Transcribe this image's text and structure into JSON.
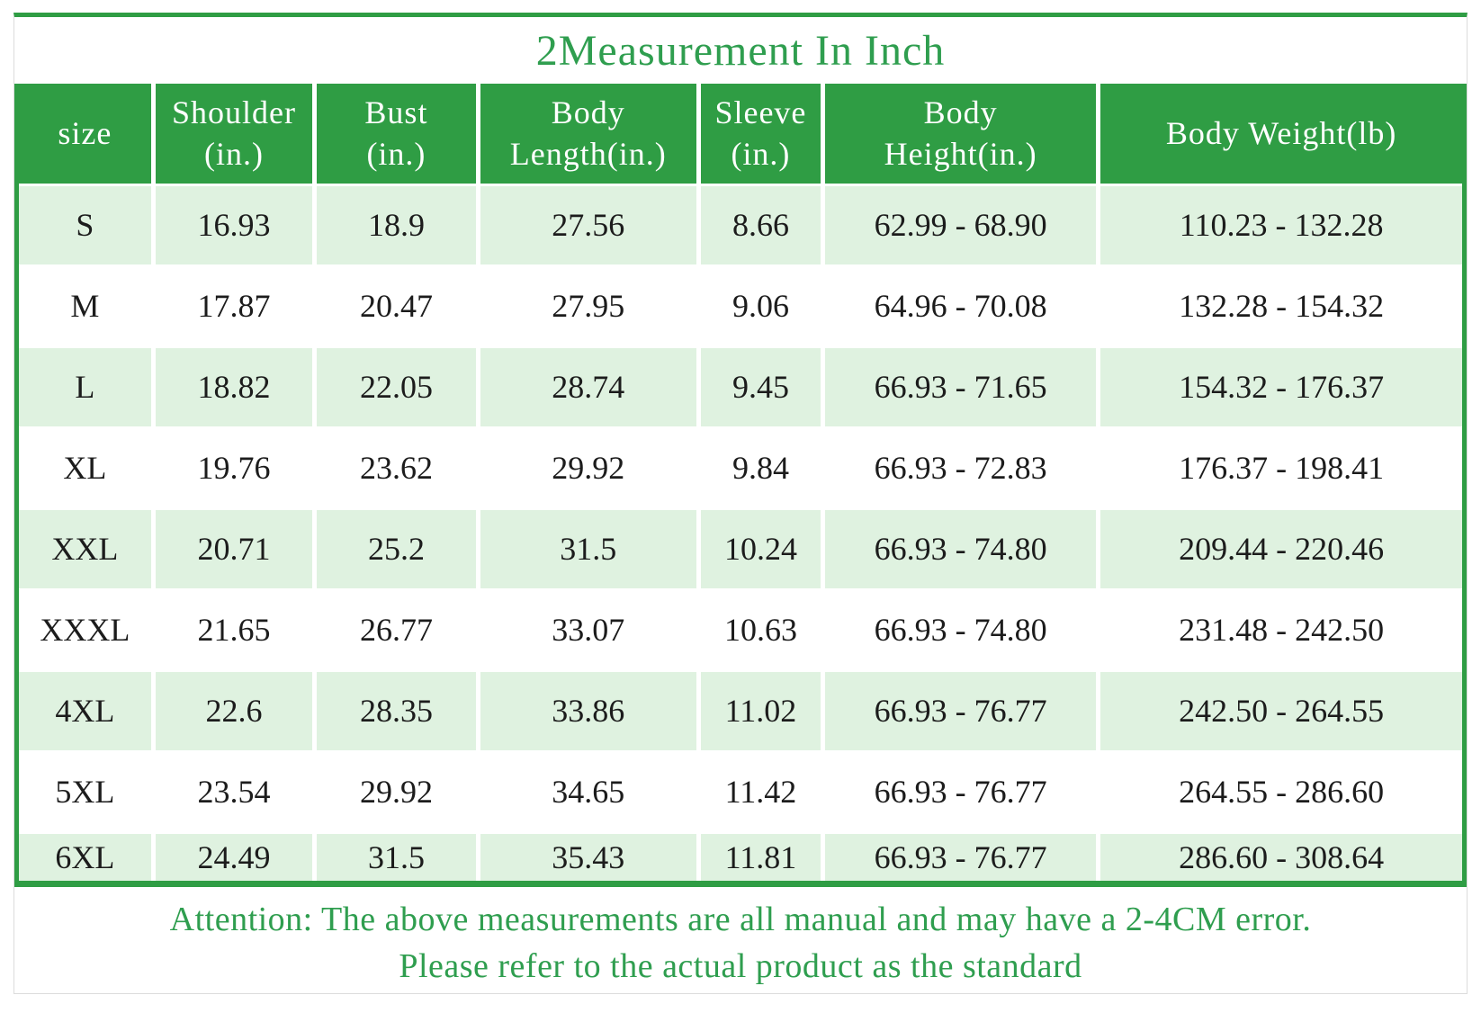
{
  "chart_data": {
    "type": "table",
    "title": "2Measurement In Inch",
    "columns": [
      "size",
      "Shoulder (in.)",
      "Bust (in.)",
      "Body Length(in.)",
      "Sleeve (in.)",
      "Body Height(in.)",
      "Body Weight(lb)"
    ],
    "rows": [
      [
        "S",
        "16.93",
        "18.9",
        "27.56",
        "8.66",
        "62.99 - 68.90",
        "110.23 - 132.28"
      ],
      [
        "M",
        "17.87",
        "20.47",
        "27.95",
        "9.06",
        "64.96 - 70.08",
        "132.28 - 154.32"
      ],
      [
        "L",
        "18.82",
        "22.05",
        "28.74",
        "9.45",
        "66.93 - 71.65",
        "154.32 - 176.37"
      ],
      [
        "XL",
        "19.76",
        "23.62",
        "29.92",
        "9.84",
        "66.93 - 72.83",
        "176.37 - 198.41"
      ],
      [
        "XXL",
        "20.71",
        "25.2",
        "31.5",
        "10.24",
        "66.93 - 74.80",
        "209.44 - 220.46"
      ],
      [
        "XXXL",
        "21.65",
        "26.77",
        "33.07",
        "10.63",
        "66.93 - 74.80",
        "231.48 - 242.50"
      ],
      [
        "4XL",
        "22.6",
        "28.35",
        "33.86",
        "11.02",
        "66.93 - 76.77",
        "242.50 - 264.55"
      ],
      [
        "5XL",
        "23.54",
        "29.92",
        "34.65",
        "11.42",
        "66.93 - 76.77",
        "264.55 - 286.60"
      ],
      [
        "6XL",
        "24.49",
        "31.5",
        "35.43",
        "11.81",
        "66.93 - 76.77",
        "286.60 - 308.64"
      ]
    ],
    "notes": [
      "Attention: The above measurements are all manual and may have a 2-4CM error.",
      "Please refer to the actual product as the standard"
    ],
    "legend_position": "none",
    "grid": "white gutters between green cells"
  },
  "header_lines": [
    [
      "size"
    ],
    [
      "Shoulder",
      "(in.)"
    ],
    [
      "Bust",
      "(in.)"
    ],
    [
      "Body",
      "Length(in.)"
    ],
    [
      "Sleeve",
      "(in.)"
    ],
    [
      "Body",
      "Height(in.)"
    ],
    [
      "Body Weight(lb)"
    ]
  ],
  "colors": {
    "frame_green": "#2f9d44",
    "row_light_green": "#dff2e0",
    "header_text": "#ffffff",
    "cell_text": "#1c1c1c",
    "accent_green": "#2f9e4f",
    "card_border": "#dcdcdc"
  }
}
